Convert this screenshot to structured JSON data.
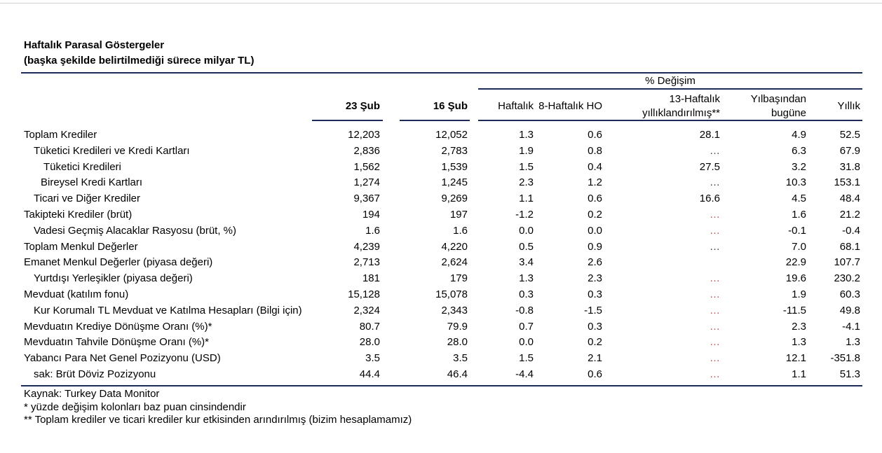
{
  "title": "Haftalık Parasal Göstergeler",
  "subtitle": "(başka şekilde belirtilmediği sürece milyar TL)",
  "header": {
    "group": "% Değişim",
    "date_current": "23 Şub",
    "date_previous": "16 Şub",
    "weekly": "Haftalık",
    "eight_week": "8-Haftalık HO",
    "thirteen_week": [
      "13-Haftalık",
      "yıllıklandırılmış**"
    ],
    "ytd": [
      "Yılbaşından",
      "bugüne"
    ],
    "yearly": "Yıllık"
  },
  "rows": [
    {
      "label": "Toplam Krediler",
      "values": [
        "12,203",
        "12,052",
        "1.3",
        "0.6",
        "28.1",
        "4.9",
        "52.5"
      ]
    },
    {
      "label": "Tüketici Kredileri ve Kredi Kartları",
      "values": [
        "2,836",
        "2,783",
        "1.9",
        "0.8",
        "…",
        "6.3",
        "67.9"
      ],
      "na_color": "#404040"
    },
    {
      "label": "Tüketici Kredileri",
      "values": [
        "1,562",
        "1,539",
        "1.5",
        "0.4",
        "27.5",
        "3.2",
        "31.8"
      ]
    },
    {
      "label": "Bireysel Kredi Kartları",
      "values": [
        "1,274",
        "1,245",
        "2.3",
        "1.2",
        "…",
        "10.3",
        "153.1"
      ],
      "na_color": "#404040"
    },
    {
      "label": "Ticari ve Diğer Krediler",
      "values": [
        "9,367",
        "9,269",
        "1.1",
        "0.6",
        "16.6",
        "4.5",
        "48.4"
      ]
    },
    {
      "label": "Takipteki Krediler (brüt)",
      "values": [
        "194",
        "197",
        "-1.2",
        "0.2",
        "…",
        "1.6",
        "21.2"
      ],
      "na_color": "#c0504d"
    },
    {
      "label": "Vadesi Geçmiş Alacaklar Rasyosu (brüt, %)",
      "values": [
        "1.6",
        "1.6",
        "0.0",
        "0.0",
        "…",
        "-0.1",
        "-0.4"
      ],
      "na_color": "#c0504d"
    },
    {
      "label": "Toplam Menkul Değerler",
      "values": [
        "4,239",
        "4,220",
        "0.5",
        "0.9",
        "…",
        "7.0",
        "68.1"
      ],
      "na_color": "#404040"
    },
    {
      "label": "Emanet Menkul Değerler (piyasa değeri)",
      "values": [
        "2,713",
        "2,624",
        "3.4",
        "2.6",
        "",
        "22.9",
        "107.7"
      ]
    },
    {
      "label": "Yurtdışı Yerleşikler (piyasa değeri)",
      "values": [
        "181",
        "179",
        "1.3",
        "2.3",
        "…",
        "19.6",
        "230.2"
      ],
      "na_color": "#c0504d"
    },
    {
      "label": "Mevduat (katılım fonu)",
      "values": [
        "15,128",
        "15,078",
        "0.3",
        "0.3",
        "…",
        "1.9",
        "60.3"
      ],
      "na_color": "#c0504d"
    },
    {
      "label": "Kur Korumalı TL Mevduat ve Katılma Hesapları (Bilgi için)",
      "values": [
        "2,324",
        "2,343",
        "-0.8",
        "-1.5",
        "…",
        "-11.5",
        "49.8"
      ],
      "na_color": "#c0504d"
    },
    {
      "label": "Mevduatın Krediye Dönüşme Oranı (%)*",
      "values": [
        "80.7",
        "79.9",
        "0.7",
        "0.3",
        "…",
        "2.3",
        "-4.1"
      ],
      "na_color": "#c0504d"
    },
    {
      "label": "Mevduatın Tahvile Dönüşme Oranı (%)*",
      "values": [
        "28.0",
        "28.0",
        "0.0",
        "0.2",
        "…",
        "1.3",
        "1.3"
      ],
      "na_color": "#c0504d"
    },
    {
      "label": "Yabancı Para Net Genel Pozizyonu (USD)",
      "values": [
        "3.5",
        "3.5",
        "1.5",
        "2.1",
        "…",
        "12.1",
        "-351.8"
      ],
      "na_color": "#c0504d"
    },
    {
      "label": "sak: Brüt Döviz Pozizyonu",
      "values": [
        "44.4",
        "46.4",
        "-4.4",
        "0.6",
        "…",
        "1.1",
        "51.3"
      ],
      "na_color": "#c0504d"
    }
  ],
  "footnotes": {
    "source": "Kaynak: Turkey Data Monitor",
    "note1": "* yüzde değişim kolonları baz puan cinsindendir",
    "note2": "** Toplam krediler ve ticari krediler kur etkisinden arındırılmış (bizim hesaplamamız)"
  },
  "colors": {
    "rule": "#1c2b5a"
  }
}
